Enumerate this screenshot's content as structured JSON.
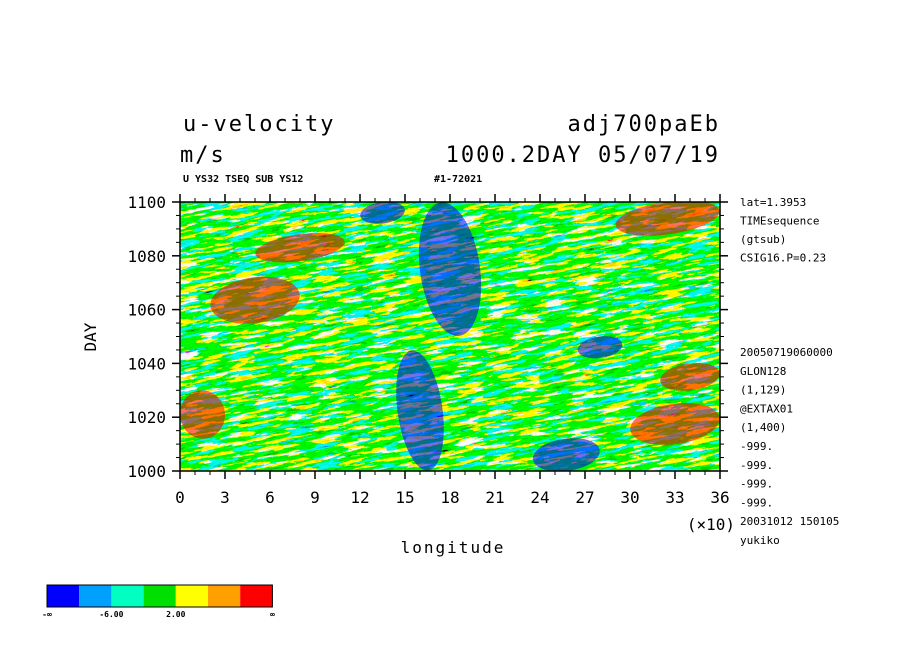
{
  "header": {
    "title_left": "u-velocity",
    "title_right": "adj700paEb",
    "units": "m/s",
    "date_line": "1000.2DAY 05/07/19",
    "subtitle_left": "U YS32 TSEQ SUB YS12",
    "subtitle_right": "#1-72021"
  },
  "side_info_top": [
    "lat=1.3953",
    "TIMEsequence",
    "(gtsub)",
    "CSIG16.P=0.23"
  ],
  "side_info_bottom": [
    "20050719060000",
    "GLON128",
    "(1,129)",
    "@EXTAX01",
    "(1,400)",
    "-999.",
    "-999.",
    "-999.",
    "-999.",
    "20031012 150105",
    "yukiko"
  ],
  "chart_data": {
    "type": "heatmap",
    "xlabel": "longitude",
    "ylabel": "DAY",
    "x_multiplier_label": "(×10)",
    "xlim": [
      0,
      36
    ],
    "ylim": [
      1000,
      1100
    ],
    "x_ticks": [
      "0",
      "3",
      "6",
      "9",
      "12",
      "15",
      "18",
      "21",
      "24",
      "27",
      "30",
      "33",
      "36"
    ],
    "y_ticks": [
      "1000",
      "1020",
      "1040",
      "1060",
      "1080",
      "1100"
    ],
    "colorbar": {
      "colors": [
        "#0000ff",
        "#00a0ff",
        "#00ffc0",
        "#00e000",
        "#ffff00",
        "#ffa000",
        "#ff0000"
      ],
      "labels": [
        "-∞",
        "-6.00",
        "2.00",
        "∞"
      ]
    },
    "color_regions": [
      {
        "color": "#0000ff",
        "x": [
          14.5,
          17.5
        ],
        "y": [
          1000,
          1045
        ]
      },
      {
        "color": "#0000ff",
        "x": [
          16,
          20
        ],
        "y": [
          1050,
          1100
        ]
      },
      {
        "color": "#0000ff",
        "x": [
          26.5,
          29.5
        ],
        "y": [
          1042,
          1050
        ]
      },
      {
        "color": "#0000ff",
        "x": [
          12,
          15
        ],
        "y": [
          1092,
          1100
        ]
      },
      {
        "color": "#0000ff",
        "x": [
          23.5,
          28
        ],
        "y": [
          1000,
          1012
        ]
      },
      {
        "color": "#ff0000",
        "x": [
          2,
          8
        ],
        "y": [
          1055,
          1072
        ]
      },
      {
        "color": "#ff0000",
        "x": [
          0,
          3
        ],
        "y": [
          1012,
          1030
        ]
      },
      {
        "color": "#ff0000",
        "x": [
          29,
          36
        ],
        "y": [
          1088,
          1100
        ]
      },
      {
        "color": "#ff0000",
        "x": [
          30,
          36
        ],
        "y": [
          1010,
          1025
        ]
      },
      {
        "color": "#ff0000",
        "x": [
          5,
          11
        ],
        "y": [
          1078,
          1088
        ]
      },
      {
        "color": "#ff0000",
        "x": [
          32,
          36
        ],
        "y": [
          1030,
          1040
        ]
      }
    ]
  }
}
